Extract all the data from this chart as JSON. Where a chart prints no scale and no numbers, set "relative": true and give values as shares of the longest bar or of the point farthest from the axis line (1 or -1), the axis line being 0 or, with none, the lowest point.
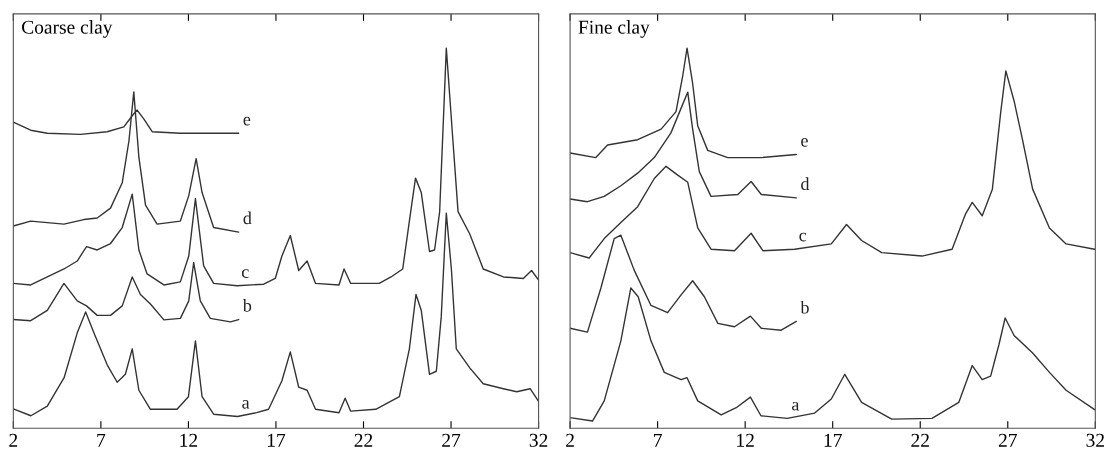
{
  "chart_data": [
    {
      "type": "line",
      "title": "Coarse clay",
      "relative": true,
      "xlim": [
        2,
        32
      ],
      "xticks": [
        2,
        7,
        12,
        17,
        22,
        27,
        32
      ],
      "tick_labels": "x",
      "series": [
        {
          "name": "a",
          "color": "#333333",
          "x": [
            2,
            3.0,
            3.94,
            4.9,
            5.65,
            6.13,
            6.6,
            7.36,
            7.93,
            8.4,
            8.79,
            9.17,
            9.83,
            11.35,
            12.0,
            12.4,
            12.78,
            13.44,
            14.8,
            15.9,
            16.58,
            17.34,
            17.82,
            18.3,
            18.78,
            19.26,
            20.6,
            20.95,
            21.27,
            22.7,
            24.05,
            24.62,
            25.0,
            25.3,
            25.77,
            26.16,
            26.44,
            26.73,
            27.02,
            27.3,
            28.07,
            28.84,
            29.99,
            30.75,
            31.52,
            32
          ],
          "values": [
            0.051,
            0.033,
            0.058,
            0.133,
            0.251,
            0.306,
            0.251,
            0.167,
            0.121,
            0.142,
            0.209,
            0.1,
            0.05,
            0.05,
            0.083,
            0.23,
            0.083,
            0.037,
            0.031,
            0.041,
            0.05,
            0.125,
            0.201,
            0.108,
            0.1,
            0.05,
            0.041,
            0.079,
            0.045,
            0.05,
            0.083,
            0.209,
            0.352,
            0.31,
            0.142,
            0.15,
            0.293,
            0.566,
            0.419,
            0.209,
            0.159,
            0.117,
            0.104,
            0.096,
            0.104,
            0.071
          ]
        },
        {
          "name": "b",
          "color": "#333333",
          "x": [
            2,
            2.99,
            3.94,
            4.89,
            5.65,
            6.18,
            6.79,
            7.55,
            8.22,
            8.79,
            9.26,
            9.83,
            10.6,
            11.54,
            12.02,
            12.3,
            12.68,
            13.25,
            14.4,
            14.87
          ],
          "values": [
            0.286,
            0.283,
            0.31,
            0.381,
            0.335,
            0.322,
            0.297,
            0.297,
            0.322,
            0.398,
            0.352,
            0.327,
            0.285,
            0.289,
            0.335,
            0.436,
            0.335,
            0.289,
            0.28,
            0.286
          ]
        },
        {
          "name": "c",
          "color": "#333333",
          "x": [
            2,
            2.99,
            3.94,
            4.89,
            5.65,
            6.18,
            6.79,
            7.55,
            8.22,
            8.79,
            9.17,
            9.64,
            10.6,
            11.54,
            12.02,
            12.4,
            12.87,
            13.44,
            14.78,
            16.3,
            16.96,
            17.34,
            17.82,
            18.3,
            18.78,
            19.26,
            20.6,
            20.89,
            21.27,
            22.9,
            23.57,
            24.24,
            24.62,
            24.97,
            25.3,
            25.77,
            26.06,
            26.35,
            26.73,
            27.11,
            27.4,
            28.07,
            28.84,
            29.99,
            31.13,
            31.6,
            32
          ],
          "values": [
            0.381,
            0.377,
            0.398,
            0.419,
            0.44,
            0.478,
            0.469,
            0.486,
            0.528,
            0.616,
            0.469,
            0.406,
            0.377,
            0.385,
            0.453,
            0.604,
            0.427,
            0.381,
            0.375,
            0.379,
            0.394,
            0.453,
            0.507,
            0.415,
            0.44,
            0.381,
            0.377,
            0.419,
            0.381,
            0.381,
            0.398,
            0.419,
            0.545,
            0.658,
            0.62,
            0.465,
            0.469,
            0.57,
            1.0,
            0.755,
            0.57,
            0.511,
            0.419,
            0.398,
            0.394,
            0.415,
            0.39
          ]
        },
        {
          "name": "d",
          "color": "#333333",
          "x": [
            2,
            2.99,
            3.94,
            4.89,
            6.03,
            6.79,
            7.55,
            8.22,
            8.6,
            8.88,
            9.17,
            9.55,
            10.21,
            11.54,
            12.02,
            12.44,
            12.78,
            13.44,
            14.87
          ],
          "values": [
            0.532,
            0.545,
            0.541,
            0.537,
            0.549,
            0.553,
            0.579,
            0.646,
            0.755,
            0.885,
            0.713,
            0.587,
            0.537,
            0.545,
            0.612,
            0.709,
            0.62,
            0.528,
            0.516
          ]
        },
        {
          "name": "e",
          "color": "#333333",
          "x": [
            2,
            2.99,
            3.94,
            5.84,
            7.36,
            8.31,
            8.79,
            9.07,
            9.45,
            9.93,
            11.54,
            13.44,
            14.87
          ],
          "values": [
            0.805,
            0.784,
            0.776,
            0.773,
            0.78,
            0.793,
            0.822,
            0.837,
            0.814,
            0.78,
            0.776,
            0.776,
            0.776
          ]
        }
      ]
    },
    {
      "type": "line",
      "title": "Fine clay",
      "relative": true,
      "xlim": [
        2,
        32
      ],
      "xticks": [
        2,
        7,
        12,
        17,
        22,
        27,
        32
      ],
      "tick_labels": "x",
      "series": [
        {
          "name": "a",
          "color": "#333333",
          "x": [
            2,
            3.28,
            3.95,
            4.9,
            5.47,
            5.89,
            6.62,
            7.38,
            8.34,
            8.68,
            9.29,
            10.63,
            11.49,
            12.3,
            12.9,
            14.4,
            15.97,
            16.92,
            17.69,
            18.65,
            20.37,
            22.67,
            24.2,
            24.97,
            25.54,
            26.02,
            26.5,
            26.85,
            27.36,
            28.42,
            29.38,
            30.33,
            31.96
          ],
          "values": [
            0.028,
            0.019,
            0.072,
            0.23,
            0.369,
            0.346,
            0.23,
            0.147,
            0.128,
            0.133,
            0.072,
            0.035,
            0.054,
            0.082,
            0.033,
            0.026,
            0.04,
            0.077,
            0.142,
            0.068,
            0.024,
            0.026,
            0.068,
            0.165,
            0.128,
            0.137,
            0.221,
            0.29,
            0.244,
            0.198,
            0.147,
            0.1,
            0.049
          ]
        },
        {
          "name": "b",
          "color": "#333333",
          "x": [
            2,
            2.99,
            3.76,
            4.52,
            4.9,
            5.66,
            6.62,
            7.57,
            8.34,
            9.0,
            9.67,
            10.44,
            11.39,
            12.3,
            12.92,
            14.06,
            14.92
          ],
          "values": [
            0.263,
            0.253,
            0.369,
            0.499,
            0.508,
            0.416,
            0.323,
            0.304,
            0.351,
            0.388,
            0.346,
            0.276,
            0.267,
            0.295,
            0.263,
            0.258,
            0.281
          ]
        },
        {
          "name": "c",
          "color": "#333333",
          "x": [
            2,
            3.09,
            3.95,
            4.9,
            5.86,
            6.81,
            7.48,
            8.15,
            8.72,
            9.29,
            10.05,
            11.39,
            12.34,
            13.01,
            14.82,
            16.92,
            17.79,
            18.65,
            19.8,
            22.1,
            23.82,
            24.59,
            24.97,
            25.54,
            26.12,
            26.6,
            26.89,
            27.36,
            27.84,
            28.42,
            29.38,
            30.33,
            31.96
          ],
          "values": [
            0.462,
            0.448,
            0.499,
            0.541,
            0.583,
            0.657,
            0.689,
            0.666,
            0.647,
            0.527,
            0.471,
            0.467,
            0.513,
            0.467,
            0.471,
            0.485,
            0.536,
            0.494,
            0.462,
            0.453,
            0.471,
            0.564,
            0.594,
            0.559,
            0.629,
            0.833,
            0.94,
            0.861,
            0.759,
            0.629,
            0.527,
            0.485,
            0.471
          ]
        },
        {
          "name": "d",
          "color": "#333333",
          "x": [
            2,
            2.99,
            3.95,
            4.9,
            5.86,
            6.81,
            7.76,
            8.43,
            8.72,
            9.0,
            9.38,
            10.05,
            11.58,
            12.34,
            12.92,
            14.92
          ],
          "values": [
            0.603,
            0.596,
            0.61,
            0.638,
            0.671,
            0.712,
            0.777,
            0.852,
            0.884,
            0.787,
            0.675,
            0.61,
            0.615,
            0.649,
            0.615,
            0.606
          ]
        },
        {
          "name": "e",
          "color": "#333333",
          "x": [
            2,
            3.47,
            4.14,
            5.86,
            7.2,
            8.05,
            8.43,
            8.68,
            9.0,
            9.29,
            9.86,
            11.0,
            12.92,
            14.92
          ],
          "values": [
            0.724,
            0.712,
            0.745,
            0.759,
            0.787,
            0.833,
            0.926,
            1.0,
            0.907,
            0.796,
            0.731,
            0.712,
            0.712,
            0.72
          ]
        }
      ]
    }
  ]
}
